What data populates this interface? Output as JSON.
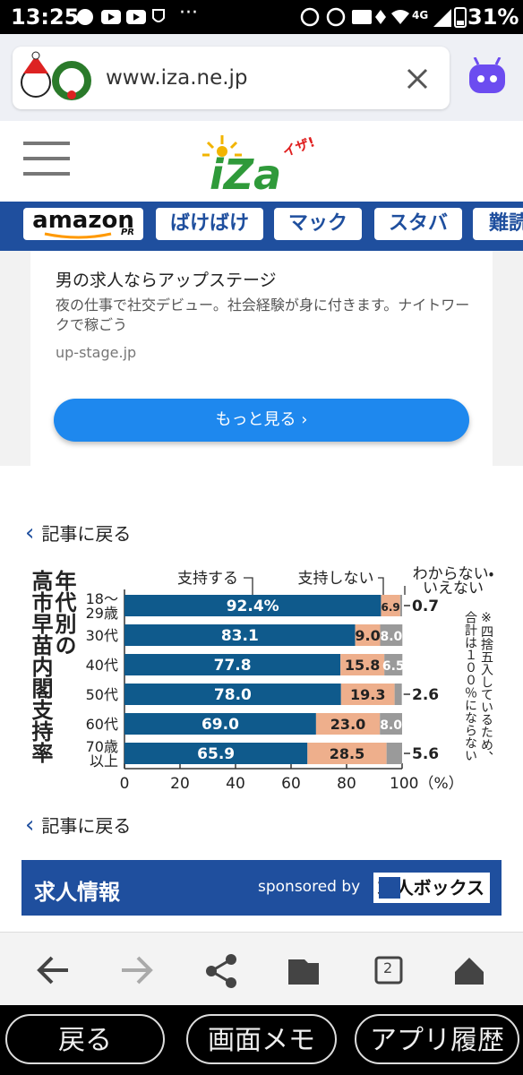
{
  "status_bar": {
    "time": "13:25",
    "network": "4G",
    "battery": "31%"
  },
  "browser": {
    "url": "www.iza.ne.jp"
  },
  "header": {
    "logo": "iZa",
    "logo_kana": "イザ!"
  },
  "nav": {
    "amazon": "amazon",
    "amazon_pr": "PR",
    "tabs": [
      "ばけばけ",
      "マック",
      "スタバ",
      "難読"
    ]
  },
  "ad": {
    "title": "男の求人ならアップステージ",
    "description": "夜の仕事で社交デビュー。社会経験が身に付きます。ナイトワークで稼ごう",
    "domain": "up-stage.jp",
    "button": "もっと見る"
  },
  "back_links": [
    "記事に戻る",
    "記事に戻る"
  ],
  "chart_data": {
    "type": "bar",
    "orientation": "horizontal",
    "stacked": true,
    "title_lines": [
      "年代別の",
      "高市早苗内閣支持率"
    ],
    "categories": [
      "18〜\n29歳",
      "30代",
      "40代",
      "50代",
      "60代",
      "70歳\n以上"
    ],
    "series": [
      {
        "name": "支持する",
        "color": "#0f5a8c",
        "values": [
          92.4,
          83.1,
          77.8,
          78.0,
          69.0,
          65.9
        ],
        "value_labels": [
          "92.4%",
          "83.1",
          "77.8",
          "78.0",
          "69.0",
          "65.9"
        ]
      },
      {
        "name": "支持しない",
        "color": "#eeaf8c",
        "values": [
          6.9,
          9.0,
          15.8,
          19.3,
          23.0,
          28.5
        ],
        "value_labels": [
          "6.9",
          "9.0",
          "15.8",
          "19.3",
          "23.0",
          "28.5"
        ]
      },
      {
        "name": "わからない・\nいえない",
        "color": "#9a9a9a",
        "values": [
          0.7,
          8.0,
          6.5,
          2.6,
          8.0,
          5.6
        ],
        "value_labels": [
          "0.7",
          "8.0",
          "6.5",
          "2.6",
          "8.0",
          "5.6"
        ]
      }
    ],
    "xlim": [
      0,
      100
    ],
    "xticks": [
      0,
      20,
      40,
      60,
      80,
      {
        "value": 100,
        "label": "100（%）"
      }
    ],
    "note": "※四捨五入しているため、\n合計は１００％にならない"
  },
  "jobs": {
    "title": "求人情報",
    "sponsored": "sponsored by",
    "sponsor": "求人ボックス"
  },
  "toolbar": {
    "tab_count": "2"
  },
  "system_nav": [
    "戻る",
    "画面メモ",
    "アプリ履歴"
  ]
}
